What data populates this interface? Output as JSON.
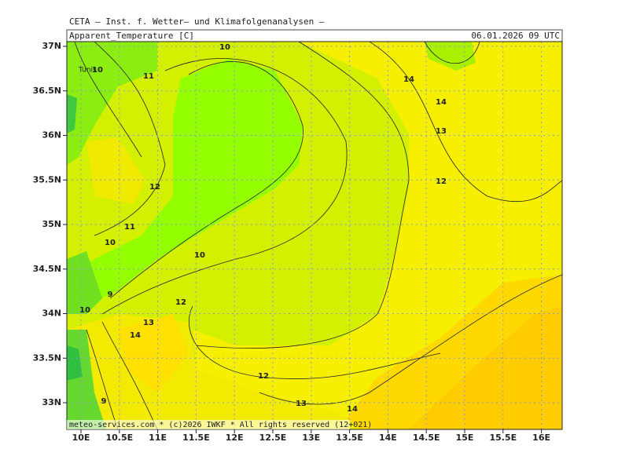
{
  "header": {
    "title": "CETA – Inst. f. Wetter– und Klimafolgenanalysen –",
    "variable": "Apparent_Temperature [C]",
    "valid_time": "06.01.2026 09 UTC"
  },
  "axes": {
    "latitudes": [
      "37N",
      "36.5N",
      "36N",
      "35.5N",
      "35N",
      "34.5N",
      "34N",
      "33.5N",
      "33N"
    ],
    "longitudes": [
      "10E",
      "10.5E",
      "11E",
      "11.5E",
      "12E",
      "12.5E",
      "13E",
      "13.5E",
      "14E",
      "14.5E",
      "15E",
      "15.5E",
      "16E"
    ]
  },
  "map": {
    "place_labels": [
      "Tunis"
    ],
    "contour_labels": [
      "10",
      "10",
      "11",
      "14",
      "14",
      "13",
      "12",
      "12",
      "11",
      "10",
      "10",
      "9",
      "12",
      "10",
      "13",
      "14",
      "12",
      "13",
      "14",
      "9"
    ]
  },
  "footer": "meteo-services.com * (c)2026 IWKF * All rights reserved (12+021)"
}
